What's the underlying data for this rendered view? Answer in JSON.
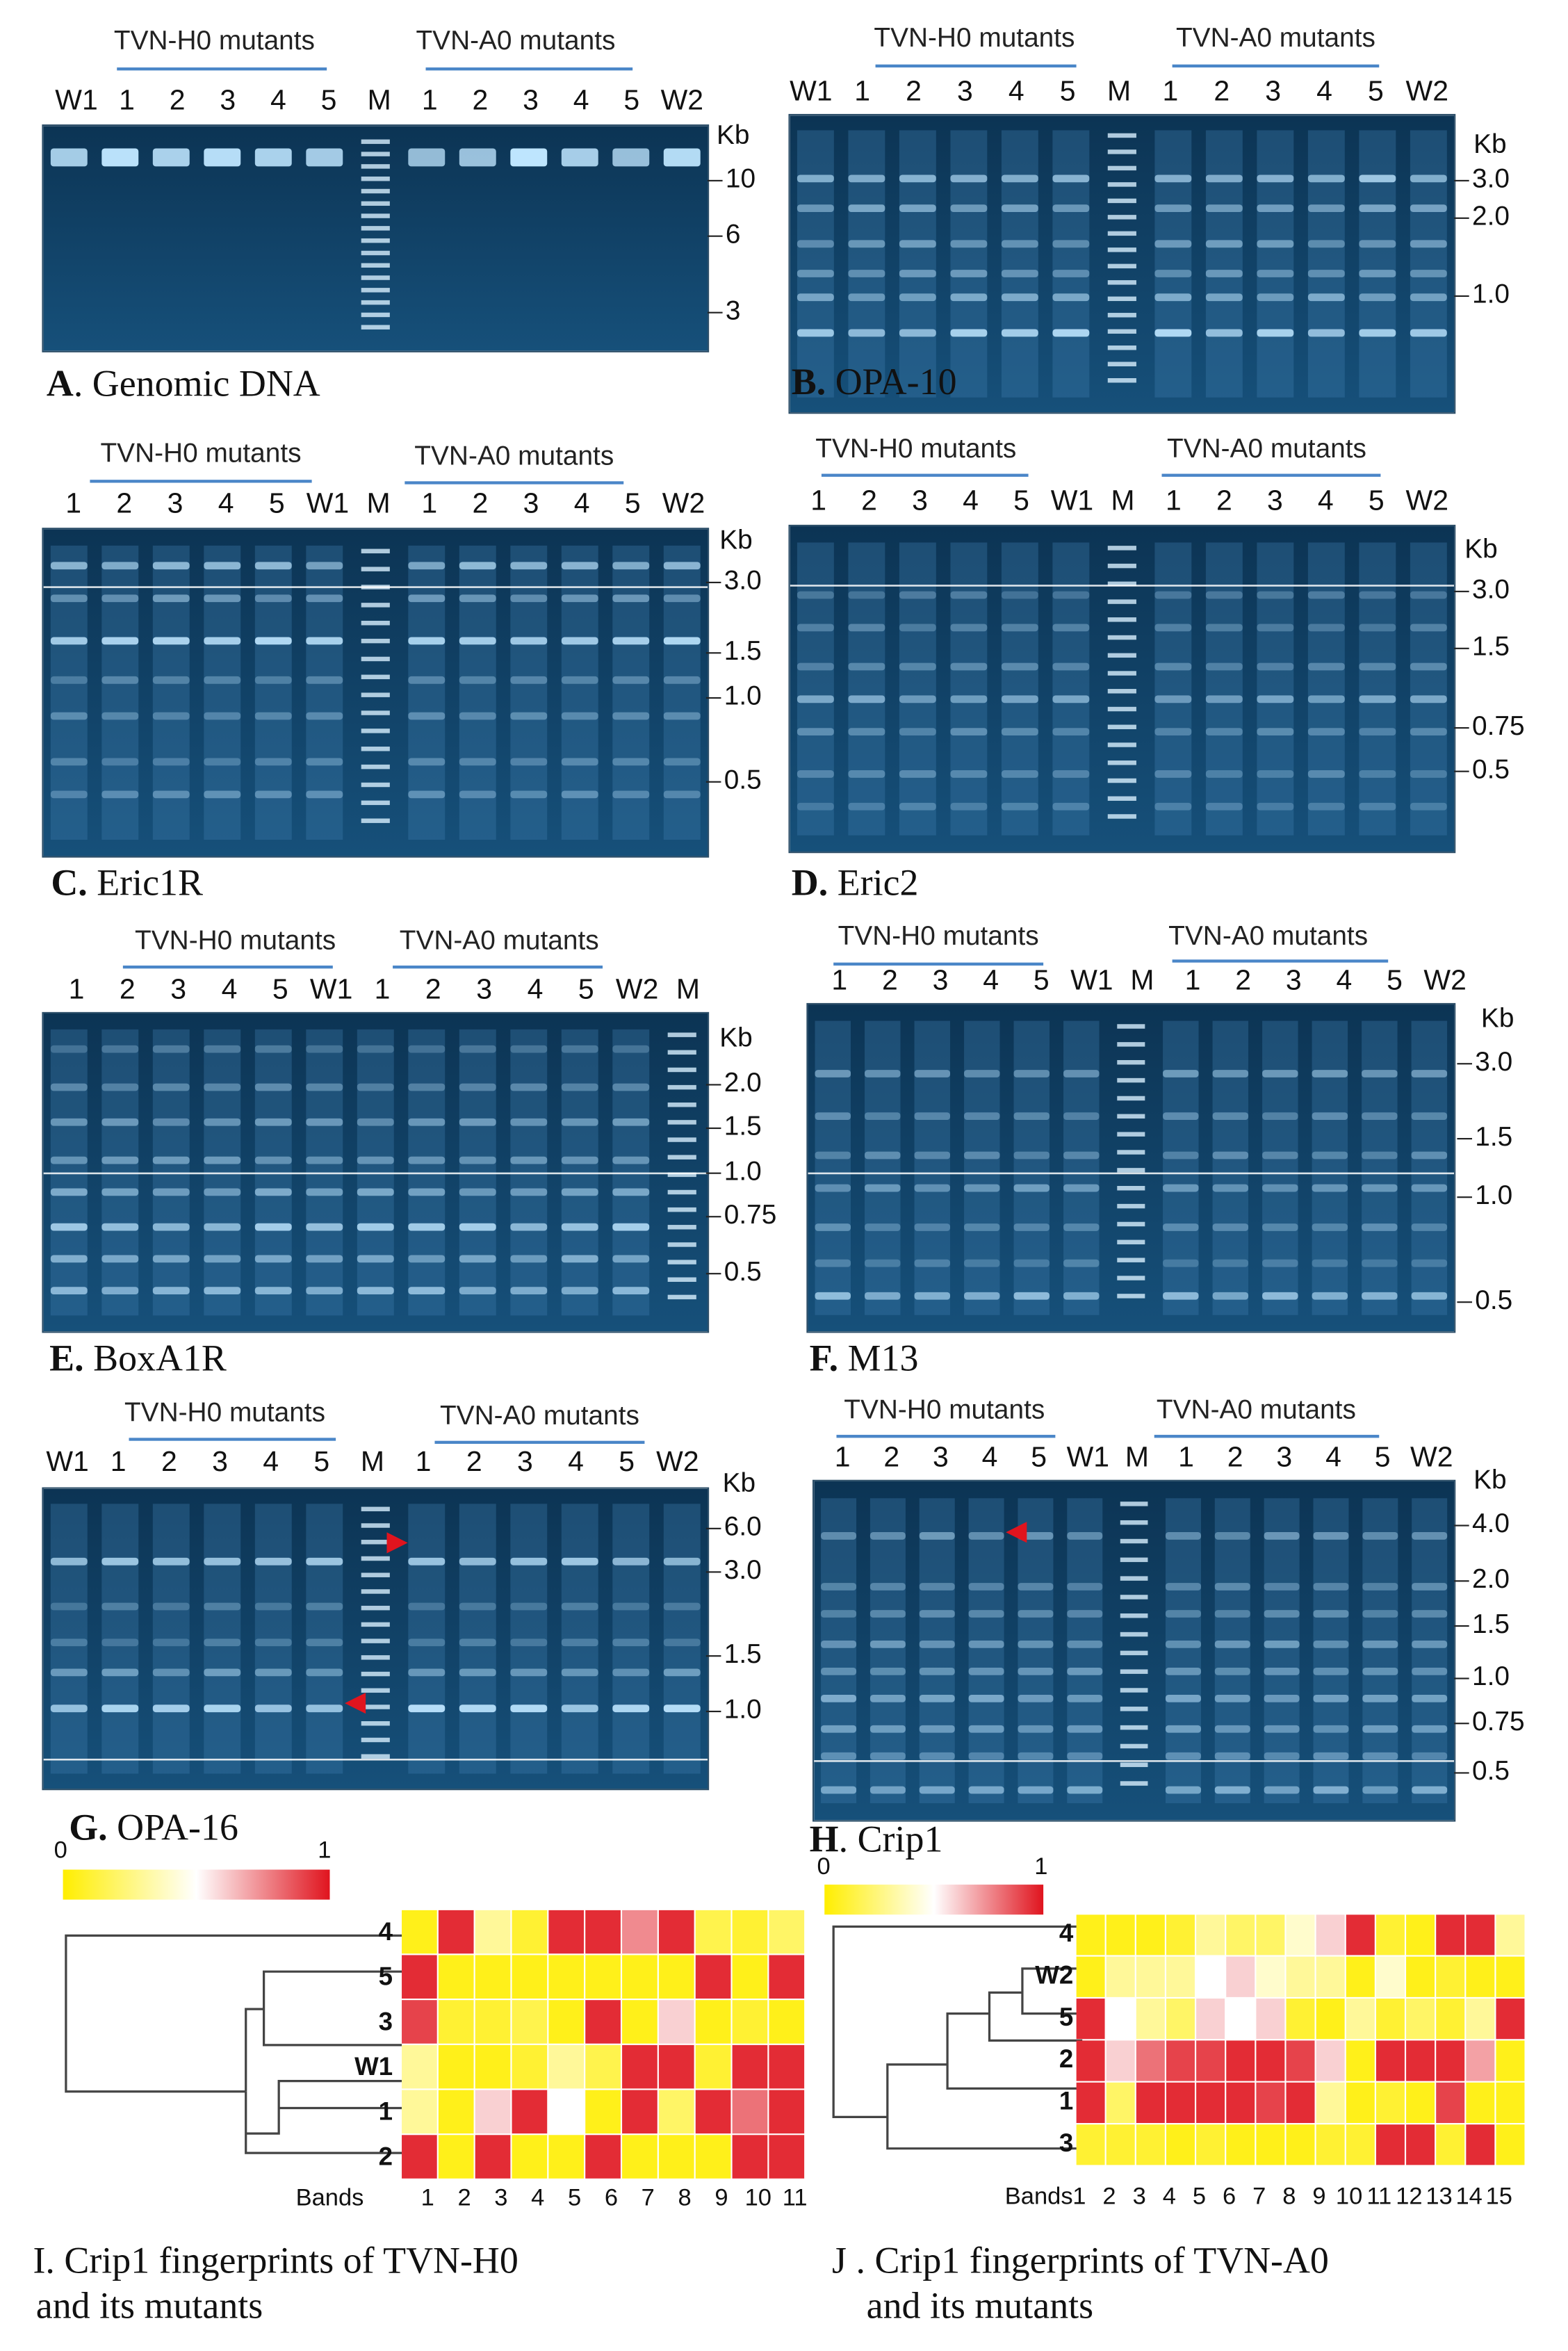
{
  "panels": {
    "A": {
      "letter": "A",
      "title": ". Genomic DNA",
      "group1": "TVN-H0 mutants",
      "group2": "TVN-A0 mutants",
      "lanes": [
        "W1",
        "1",
        "2",
        "3",
        "4",
        "5",
        "M",
        "1",
        "2",
        "3",
        "4",
        "5",
        "W2"
      ],
      "unit": "Kb",
      "markers": [
        "10",
        "6",
        "3"
      ]
    },
    "B": {
      "letter": "B.",
      "title": " OPA-10",
      "group1": "TVN-H0 mutants",
      "group2": "TVN-A0 mutants",
      "lanes": [
        "W1",
        "1",
        "2",
        "3",
        "4",
        "5",
        "M",
        "1",
        "2",
        "3",
        "4",
        "5",
        "W2"
      ],
      "unit": "Kb",
      "markers": [
        "3.0",
        "2.0",
        "1.0"
      ]
    },
    "C": {
      "letter": "C.",
      "title": " Eric1R",
      "group1": "TVN-H0 mutants",
      "group2": "TVN-A0 mutants",
      "lanes": [
        "1",
        "2",
        "3",
        "4",
        "5",
        "W1",
        "M",
        "1",
        "2",
        "3",
        "4",
        "5",
        "W2"
      ],
      "unit": "Kb",
      "markers": [
        "3.0",
        "1.5",
        "1.0",
        "0.5"
      ]
    },
    "D": {
      "letter": "D.",
      "title": " Eric2",
      "group1": "TVN-H0 mutants",
      "group2": "TVN-A0 mutants",
      "lanes": [
        "1",
        "2",
        "3",
        "4",
        "5",
        "W1",
        "M",
        "1",
        "2",
        "3",
        "4",
        "5",
        "W2"
      ],
      "unit": "Kb",
      "markers": [
        "3.0",
        "1.5",
        "0.75",
        "0.5"
      ]
    },
    "E": {
      "letter": "E.",
      "title": " BoxA1R",
      "group1": "TVN-H0 mutants",
      "group2": "TVN-A0 mutants",
      "lanes": [
        "1",
        "2",
        "3",
        "4",
        "5",
        "W1",
        "1",
        "2",
        "3",
        "4",
        "5",
        "W2",
        "M"
      ],
      "unit": "Kb",
      "markers": [
        "2.0",
        "1.5",
        "1.0",
        "0.75",
        "0.5"
      ]
    },
    "F": {
      "letter": "F.",
      "title": " M13",
      "group1": "TVN-H0 mutants",
      "group2": "TVN-A0 mutants",
      "lanes": [
        "1",
        "2",
        "3",
        "4",
        "5",
        "W1",
        "M",
        "1",
        "2",
        "3",
        "4",
        "5",
        "W2"
      ],
      "unit": "Kb",
      "markers": [
        "3.0",
        "1.5",
        "1.0",
        "0.5"
      ]
    },
    "G": {
      "letter": "G.",
      "title": " OPA-16",
      "group1": "TVN-H0 mutants",
      "group2": "TVN-A0 mutants",
      "lanes": [
        "W1",
        "1",
        "2",
        "3",
        "4",
        "5",
        "M",
        "1",
        "2",
        "3",
        "4",
        "5",
        "W2"
      ],
      "unit": "Kb",
      "markers": [
        "6.0",
        "3.0",
        "1.5",
        "1.0"
      ]
    },
    "H": {
      "letter": "H",
      "title": ". Crip1",
      "group1": "TVN-H0 mutants",
      "group2": "TVN-A0 mutants",
      "lanes": [
        "1",
        "2",
        "3",
        "4",
        "5",
        "W1",
        "M",
        "1",
        "2",
        "3",
        "4",
        "5",
        "W2"
      ],
      "unit": "Kb",
      "markers": [
        "4.0",
        "2.0",
        "1.5",
        "1.0",
        "0.75",
        "0.5"
      ]
    },
    "I": {
      "caption_line1": "I. Crip1 fingerprints of TVN-H0",
      "caption_line2": "and its mutants",
      "legend_min": "0",
      "legend_max": "1",
      "row_labels": [
        "4",
        "5",
        "3",
        "W1",
        "1",
        "2"
      ],
      "bands_label": "Bands",
      "band_numbers": [
        "1",
        "2",
        "3",
        "4",
        "5",
        "6",
        "7",
        "8",
        "9",
        "10",
        "11"
      ],
      "values": [
        [
          0.05,
          0.95,
          0.3,
          0.1,
          0.95,
          0.95,
          0.75,
          0.95,
          0.15,
          0.1,
          0.2
        ],
        [
          0.95,
          0.05,
          0.05,
          0.05,
          0.05,
          0.05,
          0.05,
          0.05,
          0.95,
          0.05,
          0.95
        ],
        [
          0.9,
          0.1,
          0.1,
          0.15,
          0.05,
          0.95,
          0.05,
          0.6,
          0.05,
          0.1,
          0.05
        ],
        [
          0.3,
          0.05,
          0.05,
          0.1,
          0.3,
          0.15,
          0.95,
          0.95,
          0.1,
          0.95,
          0.95
        ],
        [
          0.3,
          0.05,
          0.6,
          0.95,
          0.5,
          0.05,
          0.95,
          0.2,
          0.95,
          0.8,
          0.95
        ],
        [
          0.95,
          0.05,
          0.95,
          0.05,
          0.05,
          0.95,
          0.05,
          0.05,
          0.05,
          0.95,
          0.95
        ]
      ]
    },
    "J": {
      "caption_line1": "J . Crip1 fingerprints of TVN-A0",
      "caption_line2": "and its mutants",
      "legend_min": "0",
      "legend_max": "1",
      "row_labels": [
        "4",
        "W2",
        "5",
        "2",
        "1",
        "3"
      ],
      "bands_label": "Bands",
      "band_numbers": [
        "1",
        "2",
        "3",
        "4",
        "5",
        "6",
        "7",
        "8",
        "9",
        "10",
        "11",
        "12",
        "13",
        "14",
        "15"
      ],
      "values": [
        [
          0.05,
          0.05,
          0.05,
          0.1,
          0.3,
          0.2,
          0.2,
          0.4,
          0.6,
          0.95,
          0.1,
          0.05,
          0.95,
          0.95,
          0.3
        ],
        [
          0.05,
          0.3,
          0.3,
          0.3,
          0.5,
          0.6,
          0.4,
          0.3,
          0.3,
          0.05,
          0.4,
          0.05,
          0.1,
          0.05,
          0.05
        ],
        [
          0.95,
          0.5,
          0.3,
          0.2,
          0.6,
          0.5,
          0.6,
          0.1,
          0.05,
          0.3,
          0.1,
          0.2,
          0.1,
          0.3,
          0.95
        ],
        [
          0.95,
          0.6,
          0.8,
          0.9,
          0.9,
          0.95,
          0.95,
          0.9,
          0.6,
          0.05,
          0.95,
          0.95,
          0.95,
          0.7,
          0.05
        ],
        [
          0.95,
          0.2,
          0.95,
          0.95,
          0.95,
          0.95,
          0.9,
          0.95,
          0.3,
          0.05,
          0.1,
          0.05,
          0.9,
          0.05,
          0.05
        ],
        [
          0.1,
          0.1,
          0.1,
          0.05,
          0.1,
          0.05,
          0.05,
          0.05,
          0.1,
          0.1,
          0.95,
          0.95,
          0.1,
          0.95,
          0.05
        ]
      ]
    }
  },
  "colors": {
    "gel_bg": "#103a5a",
    "band": "#bfe6ff",
    "arrow": "#e0141e",
    "legend_low": "#ffee00",
    "legend_mid": "#ffffff",
    "legend_high": "#e0141e"
  }
}
